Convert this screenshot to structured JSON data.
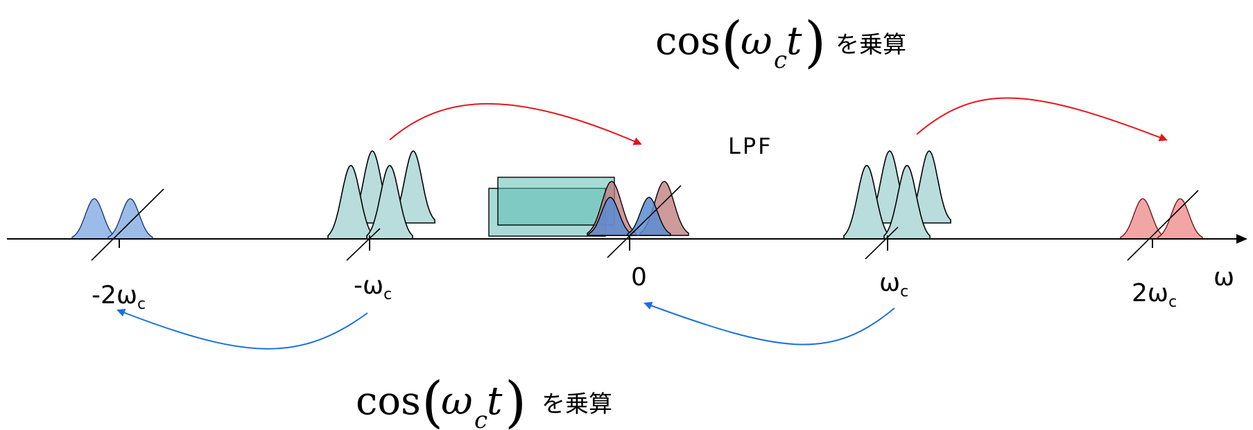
{
  "axis": {
    "symbol": "ω"
  },
  "tick_labels": [
    {
      "id": "m2wc",
      "main": "-2ω",
      "sub": "c"
    },
    {
      "id": "mwc",
      "main": "-ω",
      "sub": "c"
    },
    {
      "id": "zero",
      "main": "0",
      "sub": ""
    },
    {
      "id": "wc",
      "main": "ω",
      "sub": "c"
    },
    {
      "id": "p2wc",
      "main": "2ω",
      "sub": "c"
    }
  ],
  "filter_label": "LPF",
  "multiply_top": {
    "func": "cos",
    "var": "ω",
    "sub": "c",
    "t": "t",
    "text": "を乗算"
  },
  "multiply_bottom": {
    "func": "cos",
    "var": "ω",
    "sub": "c",
    "t": "t",
    "text": "を乗算"
  },
  "colors": {
    "input_spectrum": "#b9dcdc",
    "shift_left": "#9cbce8",
    "shift_right": "#f2a5a5",
    "arrow_top": "#e8141b",
    "arrow_bottom": "#1a6fe0",
    "lpf_box": "#5fbeb4"
  }
}
